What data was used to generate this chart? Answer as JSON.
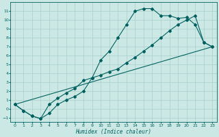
{
  "xlabel": "Humidex (Indice chaleur)",
  "bg_color": "#cce8e4",
  "grid_color": "#a8d0cc",
  "line_color": "#006060",
  "xlim": [
    -0.5,
    23.5
  ],
  "ylim": [
    -1.5,
    12.0
  ],
  "xticks": [
    0,
    1,
    2,
    3,
    4,
    5,
    6,
    7,
    8,
    9,
    10,
    11,
    12,
    13,
    14,
    15,
    16,
    17,
    18,
    19,
    20,
    21,
    22,
    23
  ],
  "yticks": [
    -1,
    0,
    1,
    2,
    3,
    4,
    5,
    6,
    7,
    8,
    9,
    10,
    11
  ],
  "curve1_x": [
    0,
    1,
    2,
    3,
    4,
    5,
    6,
    7,
    8,
    9,
    10,
    11,
    12,
    13,
    14,
    15,
    16,
    17,
    18,
    19,
    20,
    21,
    22,
    23
  ],
  "curve1_y": [
    0.5,
    -0.2,
    -0.8,
    -1.1,
    -0.5,
    0.5,
    1.0,
    1.4,
    2.0,
    3.5,
    5.5,
    6.5,
    8.0,
    9.5,
    11.0,
    11.3,
    11.3,
    10.5,
    10.5,
    10.2,
    10.3,
    9.5,
    7.5,
    7.0
  ],
  "curve2_x": [
    0,
    1,
    2,
    3,
    4,
    5,
    6,
    7,
    8,
    9,
    10,
    11,
    12,
    13,
    14,
    15,
    16,
    17,
    18,
    19,
    20,
    21,
    22,
    23
  ],
  "curve2_y": [
    0.5,
    -0.2,
    -0.8,
    -1.1,
    0.5,
    1.2,
    1.8,
    2.3,
    3.2,
    3.5,
    3.8,
    4.2,
    4.5,
    5.2,
    5.8,
    6.5,
    7.2,
    8.0,
    8.8,
    9.5,
    10.0,
    10.5,
    7.5,
    7.0
  ],
  "curve3_x": [
    0,
    23
  ],
  "curve3_y": [
    0.5,
    7.0
  ]
}
